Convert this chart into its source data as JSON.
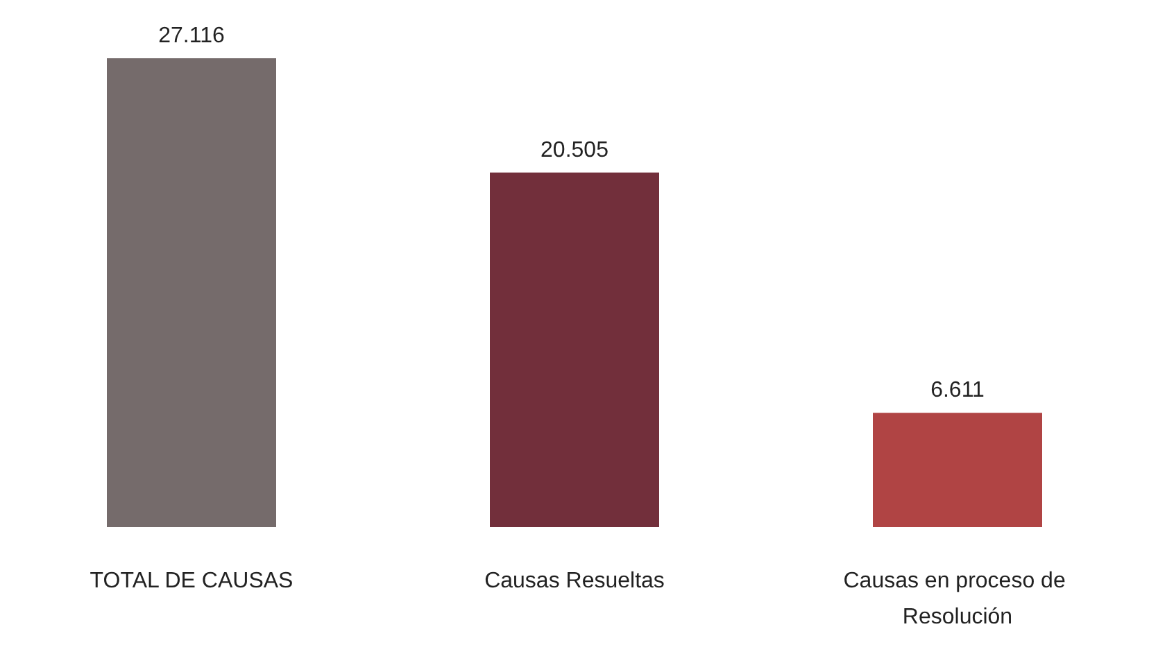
{
  "chart_data": {
    "type": "bar",
    "categories": [
      "TOTAL DE CAUSAS",
      "Causas Resueltas",
      "Causas en proceso de Resolución"
    ],
    "values": [
      27116,
      20505,
      6611
    ],
    "value_labels": [
      "27.116",
      "20.505",
      "6.611"
    ],
    "colors": [
      "#756b6b",
      "#722f3b",
      "#b04444"
    ]
  }
}
